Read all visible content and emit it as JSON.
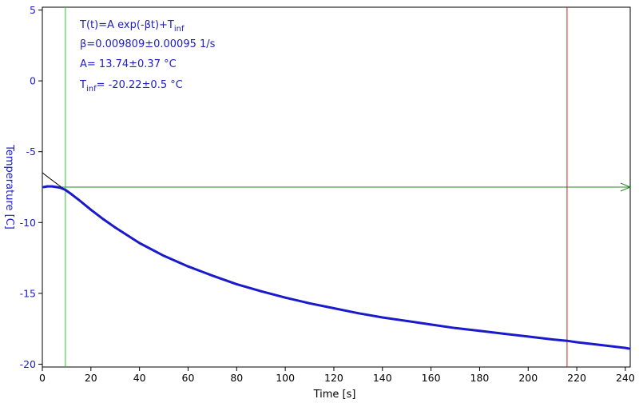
{
  "chart_data": {
    "type": "line",
    "xlabel": "Time [s]",
    "ylabel": "Temperature [C]",
    "xlim": [
      0,
      242
    ],
    "ylim": [
      -20.2,
      5.2
    ],
    "x_ticks": [
      0,
      20,
      40,
      60,
      80,
      100,
      120,
      140,
      160,
      180,
      200,
      220,
      240
    ],
    "y_ticks": [
      5,
      0,
      -5,
      -10,
      -15,
      -20
    ],
    "y_tick_labels": [
      "5",
      "0",
      "-5",
      "-10",
      "-15",
      "-20"
    ],
    "grid": false,
    "colors": {
      "data": "#1a1acc",
      "fit": "#000000",
      "cursor_left": "#22cc22",
      "cursor_right": "#cc2222",
      "horizontal_marker": "#228822",
      "text": "#2020c0"
    },
    "annotations": {
      "model": "T(t)=A exp(-βt)+T",
      "model_sub": "inf",
      "beta": "β=0.009809±0.00095 1/s",
      "A": "A= 13.74±0.37 °C",
      "tinf_prefix": "T",
      "tinf_sub": "inf",
      "tinf_value": "= -20.22±0.5 °C"
    },
    "fit": {
      "A": 13.74,
      "beta": 0.009809,
      "T_inf": -20.22
    },
    "cursors": {
      "left_x": 9.5,
      "right_x": 216
    },
    "horizontal_marker_y": -7.5,
    "series": [
      {
        "x": [
          0.5,
          2,
          4,
          6,
          7.5,
          9.5,
          12,
          15,
          20,
          25,
          30,
          40,
          50,
          60,
          70,
          80,
          90,
          100,
          110,
          120,
          130,
          140,
          150,
          160,
          170,
          180,
          190,
          200,
          210,
          216,
          220,
          230,
          240,
          241.5
        ],
        "y": [
          -7.5,
          -7.45,
          -7.45,
          -7.5,
          -7.55,
          -7.7,
          -8.0,
          -8.4,
          -9.1,
          -9.75,
          -10.35,
          -11.45,
          -12.35,
          -13.1,
          -13.75,
          -14.35,
          -14.85,
          -15.3,
          -15.7,
          -16.05,
          -16.4,
          -16.7,
          -16.95,
          -17.2,
          -17.45,
          -17.65,
          -17.85,
          -18.05,
          -18.25,
          -18.35,
          -18.45,
          -18.65,
          -18.85,
          -18.9
        ]
      }
    ]
  }
}
